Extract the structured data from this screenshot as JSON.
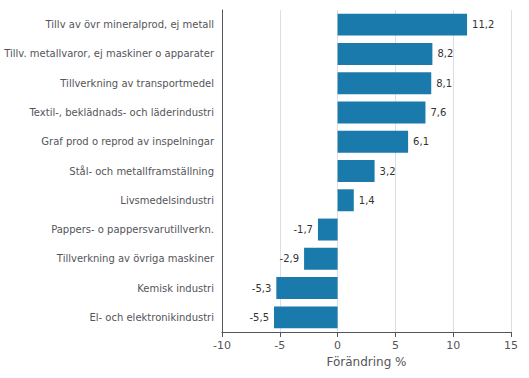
{
  "chart_data": {
    "type": "bar",
    "orientation": "horizontal",
    "categories": [
      "El- och elektronikindustri",
      "Kemisk industri",
      "Tillverkning av övriga maskiner",
      "Pappers- o pappersvarutillverkn.",
      "Livsmedelsindustri",
      "Stål- och metallframställning",
      "Graf prod o reprod av inspelningar",
      "Textil-, beklädnads- och läderindustri",
      "Tillverkning av transportmedel",
      "Tillv. metallvaror, ej maskiner o apparater",
      "Tillv av övr mineralprod, ej metall"
    ],
    "values": [
      -5.5,
      -5.3,
      -2.9,
      -1.7,
      1.4,
      3.2,
      6.1,
      7.6,
      8.1,
      8.2,
      11.2
    ],
    "value_labels": [
      "-5,5",
      "-5,3",
      "-2,9",
      "-1,7",
      "1,4",
      "3,2",
      "6,1",
      "7,6",
      "8,1",
      "8,2",
      "11,2"
    ],
    "data_labels": true,
    "color": "#1a7aab",
    "xlabel": "Förändring %",
    "xlim": [
      -10,
      15
    ],
    "xticks": [
      -10,
      -5,
      0,
      5,
      10,
      15
    ],
    "grid": true
  }
}
